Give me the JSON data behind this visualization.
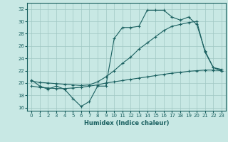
{
  "title": "",
  "xlabel": "Humidex (Indice chaleur)",
  "ylabel": "",
  "xlim": [
    -0.5,
    23.5
  ],
  "ylim": [
    15.5,
    33
  ],
  "yticks": [
    16,
    18,
    20,
    22,
    24,
    26,
    28,
    30,
    32
  ],
  "xticks": [
    0,
    1,
    2,
    3,
    4,
    5,
    6,
    7,
    8,
    9,
    10,
    11,
    12,
    13,
    14,
    15,
    16,
    17,
    18,
    19,
    20,
    21,
    22,
    23
  ],
  "bg_color": "#c8e8e4",
  "grid_color": "#a0c8c4",
  "line_color": "#1a6060",
  "line1_x": [
    0,
    1,
    2,
    3,
    4,
    5,
    6,
    7,
    8,
    9,
    10,
    11,
    12,
    13,
    14,
    15,
    16,
    17,
    18,
    19,
    20,
    21,
    22,
    23
  ],
  "line1_y": [
    20.5,
    19.5,
    19.0,
    19.5,
    19.0,
    17.5,
    16.2,
    17.0,
    19.5,
    19.5,
    27.2,
    29.0,
    29.0,
    29.2,
    31.8,
    31.8,
    31.8,
    30.7,
    30.2,
    30.7,
    29.5,
    25.2,
    22.5,
    22.2
  ],
  "line2_x": [
    0,
    1,
    2,
    3,
    4,
    5,
    6,
    7,
    8,
    9,
    10,
    11,
    12,
    13,
    14,
    15,
    16,
    17,
    18,
    19,
    20,
    21,
    22,
    23
  ],
  "line2_y": [
    19.5,
    19.3,
    19.2,
    19.1,
    19.1,
    19.2,
    19.3,
    19.5,
    19.7,
    20.0,
    20.2,
    20.4,
    20.6,
    20.8,
    21.0,
    21.2,
    21.4,
    21.6,
    21.7,
    21.9,
    22.0,
    22.1,
    22.1,
    22.0
  ],
  "line3_x": [
    0,
    1,
    2,
    3,
    4,
    5,
    6,
    7,
    8,
    9,
    10,
    11,
    12,
    13,
    14,
    15,
    16,
    17,
    18,
    19,
    20,
    21,
    22,
    23
  ],
  "line3_y": [
    20.3,
    20.1,
    20.0,
    19.9,
    19.8,
    19.7,
    19.6,
    19.7,
    20.2,
    21.0,
    22.0,
    23.2,
    24.2,
    25.5,
    26.5,
    27.5,
    28.5,
    29.2,
    29.5,
    29.8,
    30.0,
    25.0,
    22.5,
    22.0
  ]
}
